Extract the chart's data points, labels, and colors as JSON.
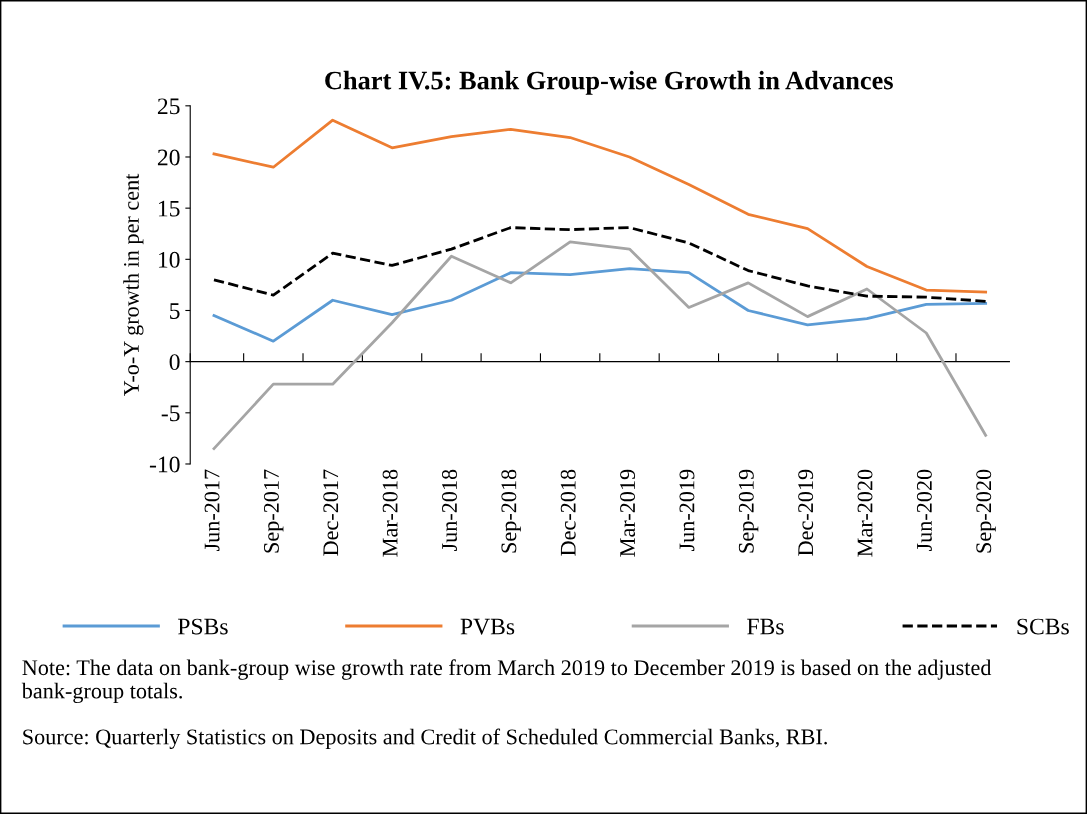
{
  "chart_data": {
    "type": "line",
    "title": "Chart IV.5: Bank Group-wise Growth in Advances",
    "ylabel": "Y-o-Y growth in per cent",
    "categories": [
      "Jun-2017",
      "Sep-2017",
      "Dec-2017",
      "Mar-2018",
      "Jun-2018",
      "Sep-2018",
      "Dec-2018",
      "Mar-2019",
      "Jun-2019",
      "Sep-2019",
      "Dec-2019",
      "Mar-2020",
      "Jun-2020",
      "Sep-2020"
    ],
    "series": [
      {
        "name": "PSBs",
        "color": "#5b9bd5",
        "line_style": "solid",
        "values": [
          4.5,
          2.0,
          6.0,
          4.6,
          6.0,
          8.7,
          8.5,
          9.1,
          8.7,
          5.0,
          3.6,
          4.2,
          5.6,
          5.7
        ]
      },
      {
        "name": "PVBs",
        "color": "#ed7d31",
        "line_style": "solid",
        "values": [
          20.3,
          19.0,
          23.6,
          20.9,
          22.0,
          22.7,
          21.9,
          20.0,
          17.3,
          14.4,
          13.0,
          9.3,
          7.0,
          6.8
        ]
      },
      {
        "name": "FBs",
        "color": "#a5a5a5",
        "line_style": "solid",
        "values": [
          -8.5,
          -2.2,
          -2.2,
          3.8,
          10.3,
          7.7,
          11.7,
          11.0,
          5.3,
          7.7,
          4.4,
          7.1,
          2.8,
          -7.2
        ]
      },
      {
        "name": "SCBs",
        "color": "#000000",
        "line_style": "dashed",
        "values": [
          8.0,
          6.5,
          10.6,
          9.4,
          11.0,
          13.1,
          12.9,
          13.1,
          11.6,
          8.9,
          7.4,
          6.4,
          6.3,
          5.9
        ]
      }
    ],
    "ylim": [
      -10,
      25
    ],
    "yticks": [
      {
        "value": -10,
        "label": "-10"
      },
      {
        "value": -5,
        "label": "-5"
      },
      0,
      5,
      10,
      15,
      20,
      25
    ],
    "legend": "bottom",
    "marker": "none",
    "annotations": [
      "Note: The data on bank-group wise growth rate from March 2019 to December 2019 is based on the adjusted bank-group totals.",
      "Source: Quarterly Statistics on Deposits and Credit of Scheduled Commercial Banks, RBI."
    ]
  }
}
